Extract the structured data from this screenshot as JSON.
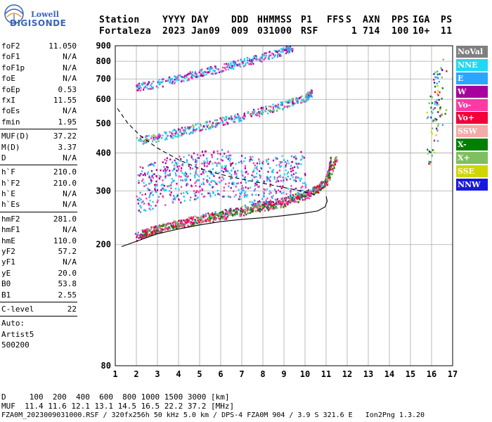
{
  "logo": {
    "brand_line1": "Lowell",
    "brand_line2": "DIGISONDE"
  },
  "header": {
    "row1": [
      "Station",
      "YYYY DAY",
      "DDD",
      "HHMMSS",
      "P1",
      "FFS",
      "S",
      "AXN",
      "PPS",
      "IGA",
      "PS"
    ],
    "row2": [
      "Fortaleza",
      "2023 Jan09",
      "009",
      "031000",
      "RSF",
      "1",
      "714",
      "100",
      "10+",
      "11"
    ]
  },
  "params": {
    "group1": [
      {
        "name": "foF2",
        "value": "11.050"
      },
      {
        "name": "foF1",
        "value": "N/A"
      },
      {
        "name": "foF1p",
        "value": "N/A"
      },
      {
        "name": "foE",
        "value": "N/A"
      },
      {
        "name": "foEp",
        "value": "0.53"
      },
      {
        "name": "fxI",
        "value": "11.55"
      },
      {
        "name": "foEs",
        "value": "N/A"
      },
      {
        "name": "fmin",
        "value": "1.95"
      }
    ],
    "group2": [
      {
        "name": "MUF(D)",
        "value": "37.22"
      },
      {
        "name": "M(D)",
        "value": "3.37"
      },
      {
        "name": "D",
        "value": "N/A"
      }
    ],
    "group3": [
      {
        "name": "h`F",
        "value": "210.0"
      },
      {
        "name": "h`F2",
        "value": "210.0"
      },
      {
        "name": "h`E",
        "value": "N/A"
      },
      {
        "name": "h`Es",
        "value": "N/A"
      }
    ],
    "group4": [
      {
        "name": "hmF2",
        "value": "281.0"
      },
      {
        "name": "hmF1",
        "value": "N/A"
      },
      {
        "name": "hmE",
        "value": "110.0"
      },
      {
        "name": "yF2",
        "value": "57.2"
      },
      {
        "name": "yF1",
        "value": "N/A"
      },
      {
        "name": "yE",
        "value": "20.0"
      },
      {
        "name": "B0",
        "value": "53.8"
      },
      {
        "name": "B1",
        "value": "2.55"
      }
    ],
    "group5": [
      {
        "name": "C-level",
        "value": "22"
      }
    ],
    "auto_lines": [
      "Auto:",
      "Artist5",
      "500200"
    ]
  },
  "legend": [
    {
      "label": "NoVal",
      "color": "#7f7f7f"
    },
    {
      "label": "NNE",
      "color": "#1fd8f4"
    },
    {
      "label": "E",
      "color": "#2aa6ff"
    },
    {
      "label": "W",
      "color": "#a8009c"
    },
    {
      "label": "Vo-",
      "color": "#ff38a4"
    },
    {
      "label": "Vo+",
      "color": "#f2003a"
    },
    {
      "label": "SSW",
      "color": "#f7a8a8"
    },
    {
      "label": "X-",
      "color": "#008000"
    },
    {
      "label": "X+",
      "color": "#7fbf5f"
    },
    {
      "label": "SSE",
      "color": "#cfd600"
    },
    {
      "label": "NNW",
      "color": "#1818e0"
    }
  ],
  "footer": {
    "line1": "D     100  200  400  600  800 1000 1500 3000 [km]",
    "line2": "MUF  11.4 11.6 12.1 13.1 14.5 16.5 22.2 37.2 [MHz]",
    "line3": "FZA0M_2023009031000.RSF / 320fx256h 50 kHz 5.0 km / DPS-4 FZA0M 904 / 3.9 S 321.6 E   Ion2Png 1.3.20"
  },
  "chart_data": {
    "type": "scatter",
    "title": "",
    "xlabel": "",
    "ylabel": "",
    "xlim": [
      1,
      17
    ],
    "x_ticks": [
      1,
      2,
      3,
      4,
      5,
      6,
      7,
      8,
      9,
      10,
      11,
      12,
      13,
      14,
      15,
      16,
      17
    ],
    "ylim": [
      80,
      900
    ],
    "y_ticks": [
      80,
      200,
      300,
      400,
      500,
      600,
      700,
      800,
      900
    ],
    "y_scale": "log",
    "grid": true,
    "legend_placement": "right",
    "curves": [
      {
        "name": "profile",
        "style": "solid",
        "x": [
          1.3,
          2.0,
          3.0,
          4.0,
          5.0,
          6.0,
          7.0,
          8.0,
          9.0,
          10.0,
          10.6,
          10.95,
          11.05,
          11.0
        ],
        "y": [
          197,
          205,
          217,
          225,
          232,
          238,
          242,
          245,
          249,
          254,
          258,
          266,
          278,
          288
        ]
      },
      {
        "name": "muf-curve",
        "style": "dashed",
        "x": [
          1.1,
          1.6,
          2.2,
          3.0,
          4.0,
          5.0,
          6.0,
          7.0,
          8.0,
          9.0,
          10.0,
          10.6
        ],
        "y": [
          560,
          500,
          455,
          415,
          380,
          355,
          340,
          328,
          318,
          308,
          298,
          290
        ]
      }
    ],
    "traces": [
      {
        "name": "O-trace-1F",
        "x": [
          1.95,
          2.5,
          3.0,
          4.0,
          5.0,
          6.0,
          7.0,
          8.0,
          9.0,
          10.0,
          10.5,
          10.9,
          11.1,
          11.2
        ],
        "y": [
          213,
          220,
          226,
          236,
          245,
          253,
          262,
          270,
          280,
          293,
          305,
          320,
          345,
          380
        ]
      },
      {
        "name": "O-trace-2F",
        "x": [
          2.0,
          3.0,
          4.0,
          5.0,
          6.0,
          7.0,
          8.0,
          9.0,
          10.0,
          10.3
        ],
        "y": [
          440,
          452,
          470,
          490,
          510,
          530,
          553,
          578,
          610,
          635
        ]
      },
      {
        "name": "O-trace-3F",
        "x": [
          2.0,
          3.0,
          4.0,
          5.0,
          6.0,
          7.0,
          8.0,
          9.0,
          9.4
        ],
        "y": [
          660,
          680,
          705,
          735,
          765,
          795,
          830,
          870,
          895
        ]
      },
      {
        "name": "spread-F",
        "x": [
          2.0,
          3.0,
          4.0,
          5.0,
          6.0,
          7.0,
          8.0,
          9.0,
          10.0
        ],
        "y": [
          300,
          320,
          330,
          340,
          345,
          335,
          320,
          330,
          350
        ]
      },
      {
        "name": "X-trace-1F",
        "x": [
          2.2,
          3.0,
          4.0,
          5.0,
          6.0,
          7.0,
          8.0,
          9.0,
          10.0,
          11.0,
          11.5
        ],
        "y": [
          218,
          226,
          234,
          242,
          250,
          258,
          266,
          276,
          288,
          320,
          390
        ]
      },
      {
        "name": "interference-16MHz",
        "x": [
          15.9,
          16.1,
          16.3,
          16.5
        ],
        "y": [
          450,
          520,
          600,
          700
        ]
      }
    ]
  }
}
